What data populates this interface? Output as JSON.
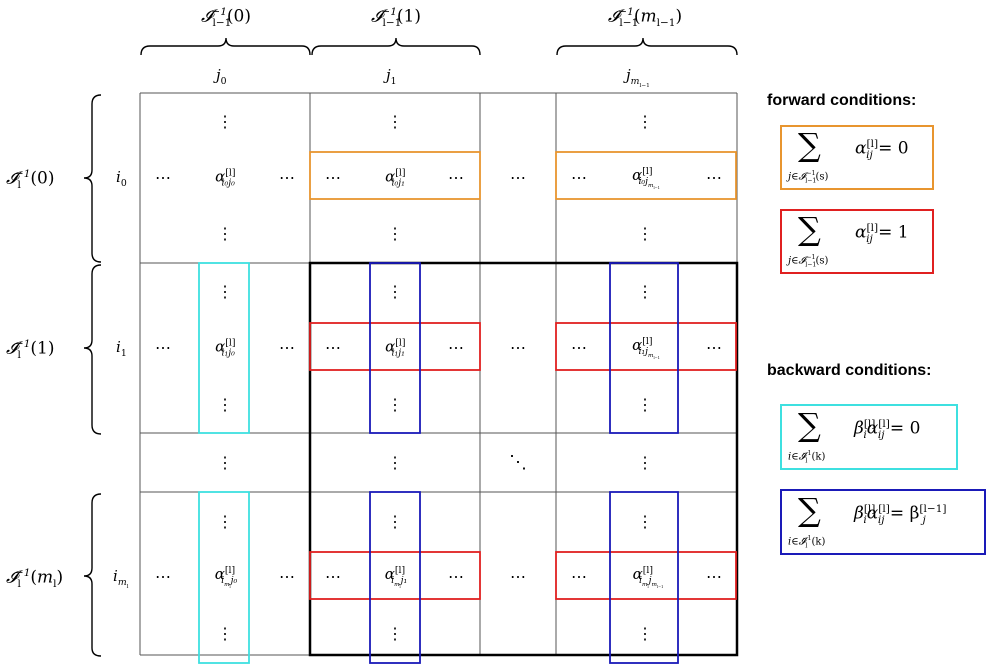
{
  "column_groups": [
    {
      "set": "𝓘",
      "sub": "l−1",
      "sup": "−1",
      "arg": "(0)"
    },
    {
      "set": "𝓘",
      "sub": "l−1",
      "sup": "−1",
      "arg": "(1)"
    },
    {
      "set": "𝓘",
      "sub": "l−1",
      "sup": "−1",
      "arg": "(m",
      "arg_sub": "l−1",
      "arg_end": ")"
    }
  ],
  "row_groups": [
    {
      "set": "𝓘",
      "sub": "l",
      "sup": "−1",
      "arg": "(0)"
    },
    {
      "set": "𝓘",
      "sub": "l",
      "sup": "−1",
      "arg": "(1)"
    },
    {
      "set": "𝓘",
      "sub": "l",
      "sup": "−1",
      "arg": "(m",
      "arg_sub": "l",
      "arg_end": ")"
    }
  ],
  "column_labels": [
    {
      "main": "j",
      "sub": "0"
    },
    {
      "main": "j",
      "sub": "1"
    },
    {
      "main": "j",
      "sub": "m",
      "subsub": "l−1"
    }
  ],
  "row_labels": [
    {
      "main": "i",
      "sub": "0"
    },
    {
      "main": "i",
      "sub": "1"
    },
    {
      "main": "i",
      "sub": "m",
      "subsub": "l"
    }
  ],
  "cells": {
    "a00": {
      "sym": "α",
      "sup": "[l]",
      "sub": "i₀j₀"
    },
    "a01": {
      "sym": "α",
      "sup": "[l]",
      "sub": "i₀j₁"
    },
    "a02": {
      "sym": "α",
      "sup": "[l]",
      "sub": "i₀j",
      "subsub": "m",
      "subsubsub": "l−1"
    },
    "a10": {
      "sym": "α",
      "sup": "[l]",
      "sub": "i₁j₀"
    },
    "a11": {
      "sym": "α",
      "sup": "[l]",
      "sub": "i₁j₁"
    },
    "a12": {
      "sym": "α",
      "sup": "[l]",
      "sub": "i₁j",
      "subsub": "m",
      "subsubsub": "l−1"
    },
    "a20": {
      "sym": "α",
      "sup": "[l]",
      "sub": "i",
      "subsub": "m",
      "subsubsub": "l",
      "tail": "j₀"
    },
    "a21": {
      "sym": "α",
      "sup": "[l]",
      "sub": "i",
      "subsub": "m",
      "subsubsub": "l",
      "tail": "j₁"
    },
    "a22": {
      "sym": "α",
      "sup": "[l]",
      "sub": "i",
      "subsub": "m",
      "subsubsub": "l",
      "tail": "j",
      "tailsub": "m",
      "tailsubsub": "l−1"
    }
  },
  "glyphs": {
    "hdots": "⋯",
    "vdots": "⋮",
    "ddots": "⋱"
  },
  "forward": {
    "heading": "forward conditions:",
    "eq1": {
      "sum": "∑",
      "index": "j∈𝓘",
      "index_sub": "l−1",
      "index_sup": "−1",
      "index_arg": "(s)",
      "body": "α",
      "body_sup": "[l]",
      "body_sub": "ij",
      "rhs": "= 0"
    },
    "eq2": {
      "sum": "∑",
      "index": "j∈𝓘",
      "index_sub": "l−1",
      "index_sup": "−1",
      "index_arg": "(s)",
      "body": "α",
      "body_sup": "[l]",
      "body_sub": "ij",
      "rhs": "= 1"
    }
  },
  "backward": {
    "heading": "backward conditions:",
    "eq1": {
      "sum": "∑",
      "index": "i∈𝓘",
      "index_sub": "l",
      "index_sup": "−1",
      "index_arg": "(k)",
      "beta": "β",
      "beta_sup": "[l]",
      "beta_sub": "i",
      "body": "α",
      "body_sup": "[l]",
      "body_sub": "ij",
      "rhs": "= 0"
    },
    "eq2": {
      "sum": "∑",
      "index": "i∈𝓘",
      "index_sub": "l",
      "index_sup": "−1",
      "index_arg": "(k)",
      "beta": "β",
      "beta_sup": "[l]",
      "beta_sub": "i",
      "body": "α",
      "body_sup": "[l]",
      "body_sub": "ij",
      "rhs": "= β",
      "rhs_sup": "[l−1]",
      "rhs_sub": "j"
    }
  },
  "colors": {
    "orange": "#e8952f",
    "red": "#e02020",
    "cyan": "#3ee0e0",
    "blue": "#1a1ab8",
    "black": "#000000"
  }
}
